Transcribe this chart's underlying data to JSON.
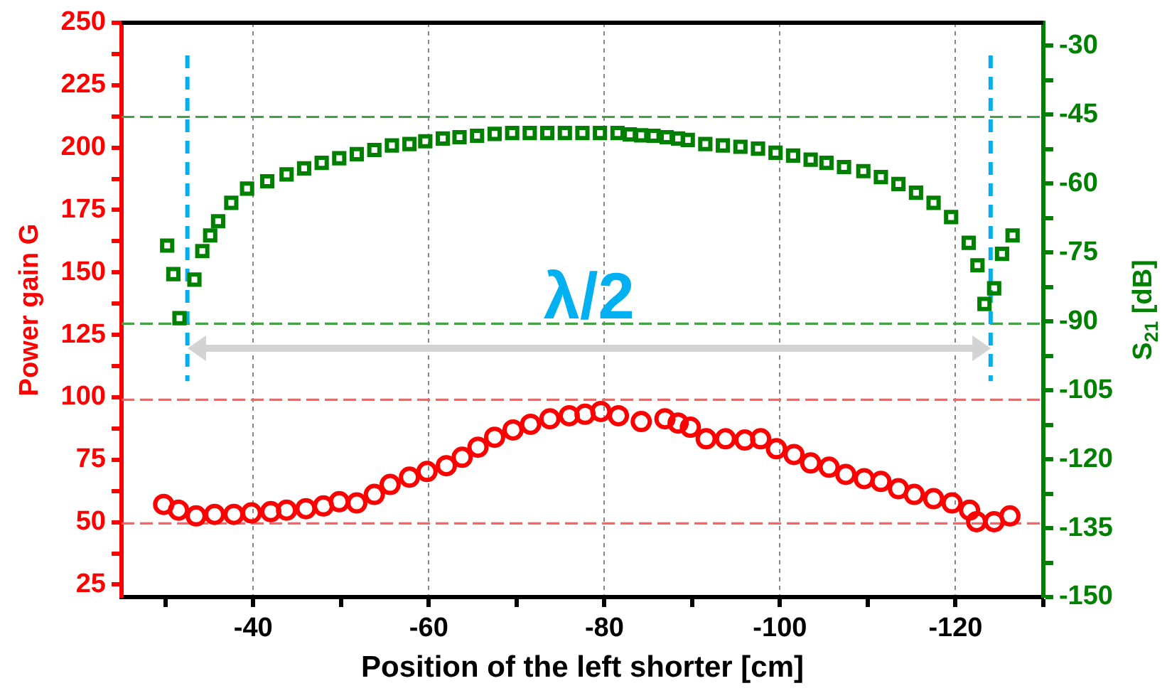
{
  "chart_data": {
    "type": "scatter",
    "xlabel": "Position of the left shorter [cm]",
    "ylabel": "Power gain G",
    "y2label": "S$_{21}$ [dB]",
    "annotations": [
      "λ/2"
    ],
    "xlim": [
      -25,
      -130
    ],
    "xticks": [
      {
        "value": -30,
        "label": null
      },
      -40,
      {
        "value": -50,
        "label": null
      },
      -60,
      {
        "value": -70,
        "label": null
      },
      -80,
      {
        "value": -90,
        "label": null
      },
      -100,
      {
        "value": -110,
        "label": null
      },
      -120,
      {
        "value": -130,
        "label": null
      }
    ],
    "ylim": [
      20,
      250
    ],
    "yticks": [
      25,
      {
        "value": 37.5,
        "label": null
      },
      50,
      {
        "value": 62.5,
        "label": null
      },
      75,
      {
        "value": 87.5,
        "label": null
      },
      100,
      {
        "value": 112.5,
        "label": null
      },
      125,
      {
        "value": 137.5,
        "label": null
      },
      150,
      {
        "value": 162.5,
        "label": null
      },
      175,
      {
        "value": 187.5,
        "label": null
      },
      200,
      {
        "value": 212.5,
        "label": null
      },
      225,
      {
        "value": 237.5,
        "label": null
      },
      250
    ],
    "y2lim": [
      -150,
      -25
    ],
    "y2ticks": [
      -150,
      {
        "value": -142.5,
        "label": null
      },
      -135,
      {
        "value": -127.5,
        "label": null
      },
      -120,
      {
        "value": -112.5,
        "label": null
      },
      -105,
      {
        "value": -97.5,
        "label": null
      },
      -90,
      {
        "value": -82.5,
        "label": null
      },
      -75,
      {
        "value": -67.5,
        "label": null
      },
      -60,
      {
        "value": -52.5,
        "label": null
      },
      -45,
      {
        "value": -37.5,
        "label": null
      },
      -30
    ],
    "grid": "x",
    "legend": false,
    "ref_lines": [
      {
        "axis": "y",
        "value": 99,
        "color": "#ff6060",
        "line_style": "dashed"
      },
      {
        "axis": "y",
        "value": 49.5,
        "color": "#ff6060",
        "line_style": "dashed"
      },
      {
        "axis": "y2",
        "value": -45.5,
        "color": "#44a044",
        "line_style": "dashed"
      },
      {
        "axis": "y2",
        "value": -90.5,
        "color": "#44a044",
        "line_style": "dashed"
      },
      {
        "axis": "x",
        "value": -32.5,
        "color": "#00b0f0",
        "line_style": "dashed"
      },
      {
        "axis": "x",
        "value": -124,
        "color": "#00b0f0",
        "line_style": "dashed"
      }
    ],
    "series": [
      {
        "color": "#ff0000",
        "marker": "circle",
        "axis": "y",
        "x": [
          -29.8,
          -31.5,
          -33.5,
          -35.6,
          -37.8,
          -39.8,
          -42.0,
          -43.8,
          -46.0,
          -48.0,
          -49.8,
          -51.8,
          -53.8,
          -55.6,
          -57.8,
          -59.8,
          -62.0,
          -63.8,
          -65.6,
          -67.5,
          -69.6,
          -71.6,
          -73.8,
          -76.0,
          -77.8,
          -79.6,
          -81.6,
          -84.2,
          -86.9,
          -88.4,
          -89.8,
          -91.6,
          -93.8,
          -96.0,
          -97.8,
          -99.6,
          -101.6,
          -103.5,
          -105.6,
          -107.5,
          -109.6,
          -111.5,
          -113.5,
          -115.3,
          -117.5,
          -119.6,
          -121.6,
          -122.4,
          -124.4,
          -126.2
        ],
        "values": [
          57.1,
          54.8,
          52.5,
          53.1,
          53.1,
          53.7,
          54.2,
          54.8,
          55.4,
          56.5,
          58.2,
          57.7,
          61.1,
          65.1,
          68.0,
          70.3,
          72.6,
          76.0,
          80.0,
          84.0,
          86.9,
          89.2,
          91.4,
          92.6,
          93.2,
          94.3,
          92.6,
          90.3,
          91.4,
          89.7,
          88.0,
          83.4,
          83.4,
          82.9,
          83.4,
          79.4,
          77.1,
          73.7,
          72.0,
          69.1,
          67.4,
          66.3,
          63.4,
          61.1,
          59.4,
          57.7,
          54.8,
          50.2,
          50.2,
          52.5
        ]
      },
      {
        "color": "#008000",
        "marker": "square",
        "axis": "y2",
        "x": [
          -30.2,
          -30.9,
          -31.6,
          -33.3,
          -34.2,
          -35.1,
          -36.0,
          -37.5,
          -39.3,
          -41.6,
          -43.8,
          -45.8,
          -47.8,
          -49.8,
          -51.8,
          -53.8,
          -55.8,
          -57.8,
          -59.6,
          -61.6,
          -63.5,
          -65.5,
          -67.5,
          -69.5,
          -71.5,
          -73.5,
          -75.5,
          -77.5,
          -79.5,
          -81.5,
          -82.9,
          -84.2,
          -85.6,
          -87.1,
          -88.4,
          -89.5,
          -91.5,
          -93.5,
          -95.5,
          -97.5,
          -99.5,
          -101.5,
          -103.5,
          -105.3,
          -107.3,
          -109.5,
          -111.5,
          -113.5,
          -115.5,
          -117.5,
          -119.5,
          -121.5,
          -122.5,
          -123.3,
          -124.4,
          -125.3,
          -126.5
        ],
        "values": [
          -73.5,
          -79.7,
          -89.3,
          -80.9,
          -74.7,
          -71.3,
          -68.2,
          -64.2,
          -61.1,
          -59.5,
          -58.0,
          -56.7,
          -55.5,
          -54.5,
          -53.6,
          -52.7,
          -51.7,
          -51.4,
          -50.8,
          -50.2,
          -49.9,
          -49.6,
          -49.2,
          -49.0,
          -49.0,
          -49.0,
          -49.0,
          -49.0,
          -49.0,
          -49.0,
          -49.3,
          -49.5,
          -49.6,
          -49.9,
          -50.2,
          -50.5,
          -51.4,
          -51.7,
          -52.0,
          -52.4,
          -53.3,
          -53.9,
          -54.8,
          -55.5,
          -56.4,
          -57.3,
          -58.6,
          -60.1,
          -62.0,
          -64.2,
          -67.3,
          -72.9,
          -77.8,
          -86.2,
          -82.8,
          -75.3,
          -71.3
        ]
      }
    ]
  }
}
